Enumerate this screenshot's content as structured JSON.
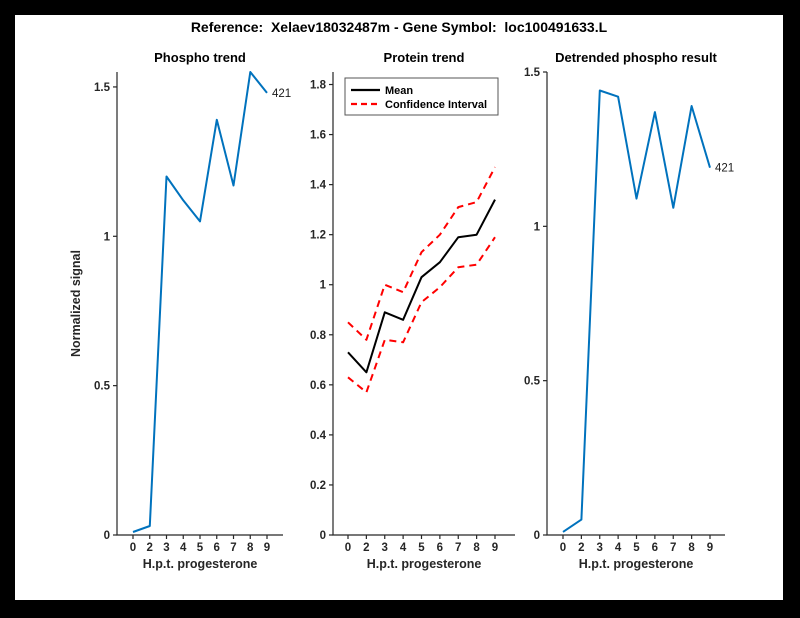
{
  "window": {
    "background": "#000000",
    "canvas_background": "#ffffff"
  },
  "figure_title": "Reference:  Xelaev18032487m - Gene Symbol:  loc100491633.L",
  "colors": {
    "axis": "#262626",
    "blue": "#0072BD",
    "red": "#FF0000",
    "black": "#000000"
  },
  "chart_data": [
    {
      "type": "line",
      "title": "Phospho trend",
      "xlabel": "H.p.t. progesterone",
      "ylabel": "Normalized signal",
      "categories": [
        "0",
        "2",
        "3",
        "4",
        "5",
        "6",
        "7",
        "8",
        "9"
      ],
      "series": [
        {
          "name": "phospho-trend",
          "color": "#0072BD",
          "style": "solid",
          "values": [
            0.01,
            0.03,
            1.2,
            1.12,
            1.05,
            1.39,
            1.17,
            1.55,
            1.48
          ]
        }
      ],
      "ylim": [
        0,
        1.55
      ],
      "yticks": [
        0,
        0.5,
        1,
        1.5
      ],
      "ytick_labels": [
        "0",
        "0.5",
        "1",
        "1.5"
      ],
      "grid": "off",
      "end_label": "421",
      "legend": null
    },
    {
      "type": "line",
      "title": "Protein trend",
      "xlabel": "H.p.t. progesterone",
      "ylabel": null,
      "categories": [
        "0",
        "2",
        "3",
        "4",
        "5",
        "6",
        "7",
        "8",
        "9"
      ],
      "series": [
        {
          "name": "mean",
          "color": "#000000",
          "style": "solid",
          "values": [
            0.73,
            0.65,
            0.89,
            0.86,
            1.03,
            1.09,
            1.19,
            1.2,
            1.34
          ]
        },
        {
          "name": "confidence-interval-upper",
          "color": "#FF0000",
          "style": "dashed",
          "values": [
            0.85,
            0.78,
            1.0,
            0.97,
            1.13,
            1.2,
            1.31,
            1.33,
            1.47
          ]
        },
        {
          "name": "confidence-interval-lower",
          "color": "#FF0000",
          "style": "dashed",
          "values": [
            0.63,
            0.57,
            0.78,
            0.77,
            0.93,
            0.99,
            1.07,
            1.08,
            1.19
          ]
        }
      ],
      "ylim": [
        0,
        1.85
      ],
      "yticks": [
        0,
        0.2,
        0.4,
        0.6,
        0.8,
        1.0,
        1.2,
        1.4,
        1.6,
        1.8
      ],
      "ytick_labels": [
        "0",
        "0.2",
        "0.4",
        "0.6",
        "0.8",
        "1",
        "1.2",
        "1.4",
        "1.6",
        "1.8"
      ],
      "grid": "off",
      "end_label": null,
      "legend": {
        "position": "top-left",
        "entries": [
          {
            "label": "Mean",
            "color": "#000000",
            "style": "solid"
          },
          {
            "label": "Confidence Interval",
            "color": "#FF0000",
            "style": "dashed"
          }
        ]
      }
    },
    {
      "type": "line",
      "title": "Detrended phospho result",
      "xlabel": "H.p.t. progesterone",
      "ylabel": null,
      "categories": [
        "0",
        "2",
        "3",
        "4",
        "5",
        "6",
        "7",
        "8",
        "9"
      ],
      "series": [
        {
          "name": "detrended-phospho",
          "color": "#0072BD",
          "style": "solid",
          "values": [
            0.01,
            0.05,
            1.44,
            1.42,
            1.09,
            1.37,
            1.06,
            1.39,
            1.19
          ]
        }
      ],
      "ylim": [
        0,
        1.5
      ],
      "yticks": [
        0,
        0.5,
        1,
        1.5
      ],
      "ytick_labels": [
        "0",
        "0.5",
        "1",
        "1.5"
      ],
      "grid": "off",
      "end_label": "421",
      "legend": null
    }
  ]
}
